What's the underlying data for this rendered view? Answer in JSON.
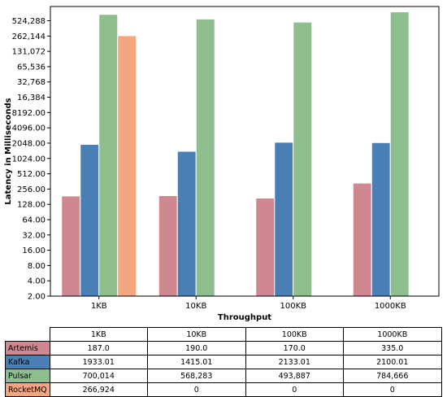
{
  "chart_data": {
    "type": "bar",
    "title": "",
    "xlabel": "Throughput",
    "ylabel": "Latency in Milliseconds",
    "y_scale": "log2",
    "ylim": [
      2,
      1000000
    ],
    "yticks": [
      "2.00",
      "4.00",
      "8.00",
      "16.00",
      "32.00",
      "64.00",
      "128.00",
      "256.00",
      "512.00",
      "1024.00",
      "2048.00",
      "4096.00",
      "8192.00",
      "16,384",
      "32,768",
      "65,536",
      "131,072",
      "262,144",
      "524,288"
    ],
    "categories": [
      "1KB",
      "10KB",
      "100KB",
      "1000KB"
    ],
    "series": [
      {
        "name": "Artemis",
        "color": "#d08890",
        "values": [
          187.0,
          190.0,
          170.0,
          335.0
        ]
      },
      {
        "name": "Kafka",
        "color": "#4a7fb5",
        "values": [
          1933.01,
          1415.01,
          2133.01,
          2100.01
        ]
      },
      {
        "name": "Pulsar",
        "color": "#8fbe8e",
        "values": [
          700014,
          568283,
          493887,
          784666
        ]
      },
      {
        "name": "RocketMQ",
        "color": "#f4a582",
        "values": [
          266924,
          0,
          0,
          0
        ]
      }
    ],
    "table": {
      "header": [
        "1KB",
        "10KB",
        "100KB",
        "1000KB"
      ],
      "rows": [
        {
          "label": "Artemis",
          "cells": [
            "187.0",
            "190.0",
            "170.0",
            "335.0"
          ]
        },
        {
          "label": "Kafka",
          "cells": [
            "1933.01",
            "1415.01",
            "2133.01",
            "2100.01"
          ]
        },
        {
          "label": "Pulsar",
          "cells": [
            "700,014",
            "568,283",
            "493,887",
            "784,666"
          ]
        },
        {
          "label": "RocketMQ",
          "cells": [
            "266,924",
            "0",
            "0",
            "0"
          ]
        }
      ]
    }
  }
}
